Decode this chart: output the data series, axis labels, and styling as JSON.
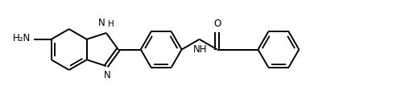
{
  "background_color": "#ffffff",
  "line_color": "#000000",
  "line_width": 1.4,
  "font_size": 8.5,
  "figsize": [
    4.93,
    1.23
  ],
  "dpi": 100,
  "xlim": [
    0,
    4.93
  ],
  "ylim": [
    0,
    1.23
  ]
}
